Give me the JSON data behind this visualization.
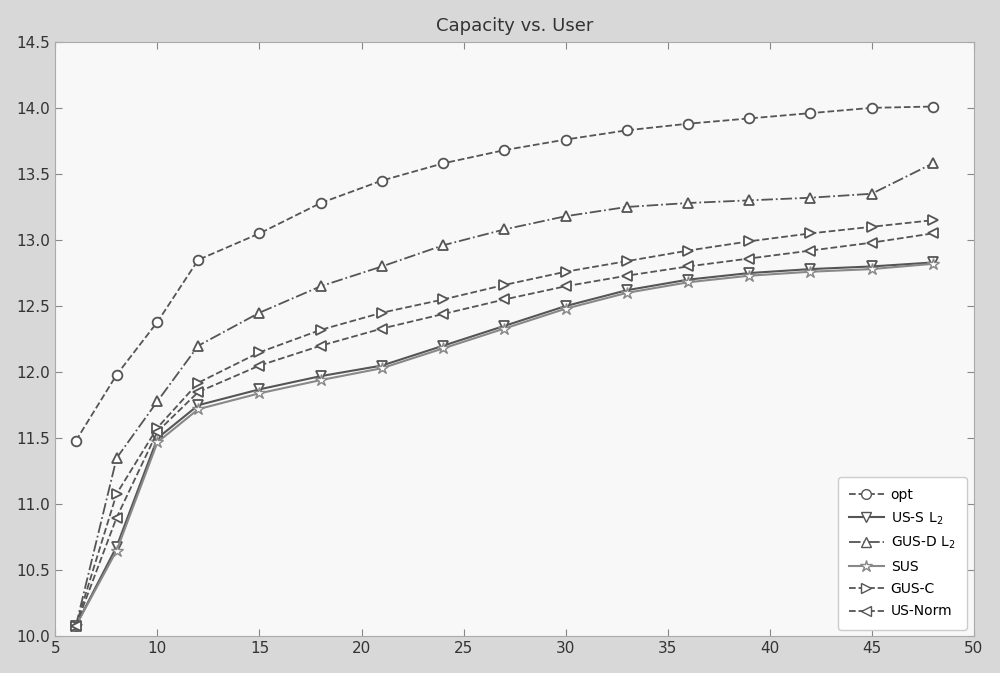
{
  "title": "Capacity vs. User",
  "xlim": [
    5,
    50
  ],
  "ylim": [
    10,
    14.5
  ],
  "xticks": [
    5,
    10,
    15,
    20,
    25,
    30,
    35,
    40,
    45,
    50
  ],
  "yticks": [
    10,
    10.5,
    11,
    11.5,
    12,
    12.5,
    13,
    13.5,
    14,
    14.5
  ],
  "x": [
    6,
    8,
    10,
    12,
    15,
    18,
    21,
    24,
    27,
    30,
    33,
    36,
    39,
    42,
    45,
    48
  ],
  "opt": [
    11.48,
    11.98,
    12.38,
    12.85,
    13.05,
    13.28,
    13.45,
    13.58,
    13.68,
    13.76,
    13.83,
    13.88,
    13.92,
    13.96,
    14.0,
    14.01
  ],
  "us_s_l2": [
    10.08,
    10.68,
    11.5,
    11.75,
    11.87,
    11.97,
    12.05,
    12.2,
    12.35,
    12.5,
    12.62,
    12.7,
    12.75,
    12.78,
    12.8,
    12.83
  ],
  "gus_d_l2": [
    10.08,
    11.35,
    11.78,
    12.2,
    12.45,
    12.65,
    12.8,
    12.96,
    13.08,
    13.18,
    13.25,
    13.28,
    13.3,
    13.32,
    13.35,
    13.58
  ],
  "sus": [
    10.08,
    10.65,
    11.47,
    11.72,
    11.84,
    11.94,
    12.03,
    12.18,
    12.33,
    12.48,
    12.6,
    12.68,
    12.73,
    12.76,
    12.78,
    12.82
  ],
  "gus_c": [
    10.08,
    11.08,
    11.58,
    11.92,
    12.15,
    12.32,
    12.45,
    12.55,
    12.66,
    12.76,
    12.84,
    12.92,
    12.99,
    13.05,
    13.1,
    13.15
  ],
  "us_norm": [
    10.08,
    10.9,
    11.55,
    11.85,
    12.05,
    12.2,
    12.33,
    12.44,
    12.55,
    12.65,
    12.73,
    12.8,
    12.86,
    12.92,
    12.98,
    13.05
  ],
  "line_color": "#555555",
  "bg_color": "#f8f8f8",
  "fig_color": "#d8d8d8",
  "legend_loc": "lower right"
}
